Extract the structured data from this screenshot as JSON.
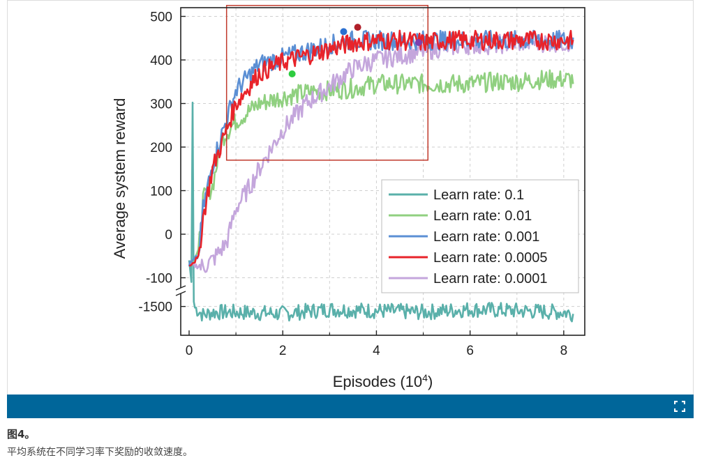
{
  "figure": {
    "label": "图4。",
    "caption": "平均系统在不同学习率下奖励的收敛速度。"
  },
  "icons": {
    "expand": "expand-icon"
  },
  "colors": {
    "bar": "#00669a",
    "box": "#c0392b"
  },
  "chart_data": {
    "type": "line",
    "xlabel": "Episodes (10",
    "xlabel_sup": "4",
    "xlabel_end": ")",
    "ylabel": "Average system reward",
    "xlim": [
      0,
      8.3
    ],
    "ylim_upper": [
      -120,
      520
    ],
    "ylim_lower": [
      -1600,
      -1450
    ],
    "axis_break": "between -100 and -1500",
    "x_ticks": [
      "0",
      "2",
      "4",
      "6",
      "8"
    ],
    "y_ticks_upper": [
      "500",
      "400",
      "300",
      "200",
      "100",
      "0",
      "-100"
    ],
    "y_ticks_lower": [
      "-1500"
    ],
    "grid": true,
    "legend_position": "bottom-right",
    "highlight_box": {
      "x": [
        0.8,
        5.1
      ],
      "y": [
        170,
        525
      ]
    },
    "series": [
      {
        "name": "Learn rate: 0.1",
        "color": "#5ab0aa",
        "x": [
          0,
          0.05,
          0.1,
          0.3,
          0.5,
          1,
          2,
          3,
          4,
          5,
          6,
          7,
          8,
          8.2
        ],
        "y": [
          -60,
          -110,
          -1500,
          -1530,
          -1520,
          -1520,
          -1525,
          -1510,
          -1515,
          -1520,
          -1510,
          -1515,
          -1520,
          -1525
        ]
      },
      {
        "name": "Learn rate: 0.01",
        "color": "#90d080",
        "x": [
          0,
          0.2,
          0.3,
          0.5,
          0.7,
          1,
          1.5,
          2,
          2.5,
          3,
          3.5,
          4,
          4.5,
          5,
          5.5,
          6,
          6.5,
          7,
          7.5,
          8,
          8.2
        ],
        "y": [
          -70,
          -40,
          80,
          110,
          220,
          260,
          300,
          315,
          325,
          330,
          335,
          345,
          345,
          345,
          345,
          345,
          350,
          350,
          355,
          355,
          355
        ],
        "marker": {
          "x": 2.2,
          "y": 368,
          "color": "#2ecc40"
        }
      },
      {
        "name": "Learn rate: 0.001",
        "color": "#5b8fd4",
        "x": [
          0,
          0.2,
          0.3,
          0.5,
          0.7,
          1,
          1.5,
          2,
          2.5,
          3,
          3.5,
          4,
          4.5,
          5,
          5.5,
          6,
          6.5,
          7,
          7.5,
          8,
          8.2
        ],
        "y": [
          -70,
          -50,
          60,
          160,
          230,
          330,
          390,
          405,
          420,
          435,
          445,
          445,
          445,
          445,
          445,
          445,
          445,
          445,
          445,
          445,
          445
        ],
        "marker": {
          "x": 3.3,
          "y": 465,
          "color": "#2a6fd0"
        }
      },
      {
        "name": "Learn rate: 0.0005",
        "color": "#e8232a",
        "x": [
          0,
          0.2,
          0.3,
          0.5,
          0.7,
          1,
          1.5,
          2,
          2.5,
          3,
          3.5,
          4,
          4.5,
          5,
          5.5,
          6,
          6.5,
          7,
          7.5,
          8,
          8.2
        ],
        "y": [
          -70,
          -55,
          40,
          150,
          210,
          300,
          370,
          395,
          410,
          425,
          440,
          445,
          445,
          440,
          445,
          445,
          445,
          445,
          445,
          445,
          445
        ],
        "marker": {
          "x": 3.6,
          "y": 475,
          "color": "#b0202a"
        }
      },
      {
        "name": "Learn rate: 0.0001",
        "color": "#c4a6dc",
        "x": [
          0,
          0.3,
          0.5,
          0.8,
          1,
          1.3,
          1.6,
          2,
          2.5,
          3,
          3.5,
          4,
          4.5,
          5,
          5.5,
          6,
          6.5,
          7,
          7.5,
          8,
          8.2
        ],
        "y": [
          -70,
          -75,
          -60,
          -20,
          60,
          110,
          170,
          240,
          300,
          340,
          380,
          400,
          410,
          420,
          430,
          435,
          435,
          440,
          440,
          440,
          440
        ],
        "marker": {
          "x": 4.9,
          "y": 440,
          "color": "#7d3fb0"
        }
      }
    ]
  }
}
